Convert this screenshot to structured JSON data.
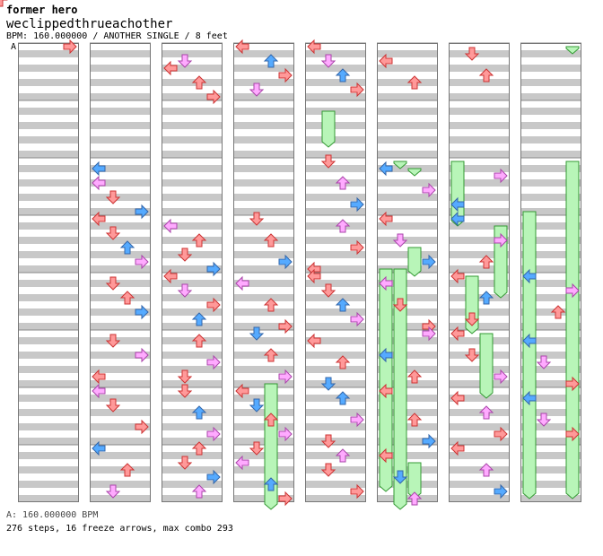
{
  "header": {
    "artist": "former hero",
    "title": "weclippedthrueachother",
    "meta": "BPM: 160.000000 / ANOTHER SINGLE / 8 feet",
    "bpm_change_marker": "A"
  },
  "footer": {
    "bpm_line": "A: 160.000000 BPM",
    "stats": "276 steps, 16 freeze arrows, max combo 293"
  },
  "colors": {
    "left": "#55aaff",
    "down": "#ff9999",
    "up": "#ff9999",
    "right": "#ff9999",
    "quarter": "#ff9999",
    "eighth": "#55aaff",
    "sixteenth": "#ffaaff",
    "freeze": "#b8f5b8",
    "stripe": "#c8c8c8"
  },
  "chart_data": {
    "type": "step-chart",
    "lanes": [
      "left",
      "down",
      "up",
      "right"
    ],
    "measures_per_column": 8,
    "columns": 8,
    "rows_per_measure": 8,
    "notes": [
      [
        0,
        0,
        0,
        4,
        0
      ],
      [
        0,
        0,
        0,
        5,
        1
      ],
      [
        0,
        0,
        0,
        6,
        2
      ],
      [
        0,
        0,
        0,
        7,
        3
      ],
      [
        0,
        0,
        0,
        3,
        0
      ],
      [
        1,
        2,
        1,
        0,
        1
      ],
      [
        1,
        2,
        3,
        0,
        2
      ],
      [
        1,
        2,
        5,
        1,
        0
      ],
      [
        1,
        2,
        7,
        3,
        1
      ],
      [
        2,
        0,
        3,
        0,
        3
      ],
      [
        2,
        0,
        2,
        1,
        2
      ],
      [
        2,
        0,
        5,
        2,
        0
      ],
      [
        2,
        0,
        7,
        3,
        3
      ],
      [
        3,
        0,
        0,
        0,
        3
      ],
      [
        3,
        0,
        2,
        2,
        1
      ],
      [
        3,
        0,
        4,
        3,
        0
      ],
      [
        3,
        0,
        6,
        1,
        2
      ],
      [
        4,
        0,
        0,
        0,
        0
      ],
      [
        4,
        0,
        2,
        1,
        2
      ],
      [
        4,
        0,
        4,
        2,
        1
      ],
      [
        4,
        0,
        6,
        3,
        3
      ],
      [
        4,
        2,
        0,
        1,
        0
      ],
      [
        4,
        2,
        3,
        2,
        2
      ],
      [
        4,
        2,
        6,
        3,
        1
      ],
      [
        5,
        0,
        2,
        0,
        0
      ],
      [
        5,
        0,
        5,
        2,
        3
      ],
      [
        5,
        2,
        1,
        0,
        1
      ],
      [
        5,
        2,
        4,
        3,
        2
      ],
      [
        6,
        0,
        1,
        1,
        0
      ],
      [
        6,
        0,
        4,
        2,
        3
      ],
      [
        6,
        2,
        2,
        3,
        2
      ],
      [
        6,
        2,
        6,
        0,
        1
      ],
      [
        0,
        3,
        0,
        4,
        0
      ],
      [
        0,
        3,
        2,
        5,
        1
      ],
      [
        0,
        3,
        4,
        6,
        2
      ],
      [
        0,
        3,
        6,
        7,
        3
      ],
      [
        1,
        3,
        0,
        0,
        0
      ],
      [
        1,
        3,
        2,
        1,
        3
      ],
      [
        1,
        3,
        4,
        2,
        1
      ],
      [
        1,
        3,
        6,
        3,
        2
      ],
      [
        2,
        3,
        1,
        0,
        2
      ],
      [
        2,
        3,
        3,
        2,
        3
      ],
      [
        2,
        3,
        5,
        1,
        0
      ],
      [
        2,
        3,
        7,
        3,
        1
      ],
      [
        3,
        3,
        0,
        1,
        0
      ],
      [
        3,
        3,
        3,
        2,
        3
      ],
      [
        3,
        3,
        6,
        3,
        1
      ],
      [
        4,
        3,
        1,
        2,
        2
      ],
      [
        4,
        3,
        4,
        3,
        0
      ],
      [
        4,
        3,
        7,
        0,
        3
      ],
      [
        5,
        3,
        0,
        0,
        0
      ],
      [
        5,
        3,
        3,
        1,
        2
      ],
      [
        5,
        3,
        6,
        3,
        1
      ],
      [
        6,
        3,
        0,
        0,
        1
      ],
      [
        6,
        3,
        3,
        3,
        2
      ],
      [
        6,
        3,
        6,
        2,
        3
      ],
      [
        0,
        4,
        0,
        4,
        1
      ],
      [
        0,
        4,
        2,
        5,
        2
      ],
      [
        0,
        4,
        4,
        6,
        0
      ],
      [
        0,
        4,
        6,
        7,
        3
      ],
      [
        1,
        4,
        1,
        1,
        0
      ],
      [
        1,
        4,
        3,
        2,
        3
      ],
      [
        1,
        4,
        5,
        3,
        1
      ],
      [
        2,
        4,
        0,
        0,
        0
      ],
      [
        2,
        4,
        2,
        1,
        2
      ],
      [
        2,
        4,
        4,
        3,
        3
      ],
      [
        2,
        4,
        6,
        2,
        1
      ],
      [
        3,
        4,
        1,
        0,
        2
      ],
      [
        3,
        4,
        4,
        2,
        0
      ],
      [
        3,
        4,
        7,
        3,
        3
      ],
      [
        4,
        4,
        0,
        0,
        0
      ],
      [
        4,
        4,
        2,
        1,
        3
      ],
      [
        4,
        4,
        4,
        2,
        1
      ],
      [
        4,
        4,
        6,
        3,
        2
      ],
      [
        5,
        4,
        1,
        0,
        2
      ],
      [
        5,
        4,
        4,
        1,
        0
      ],
      [
        5,
        4,
        7,
        3,
        3
      ],
      [
        6,
        4,
        0,
        0,
        0
      ],
      [
        6,
        4,
        3,
        2,
        1
      ],
      [
        6,
        4,
        6,
        1,
        3
      ],
      [
        7,
        4,
        0,
        0,
        1
      ],
      [
        7,
        4,
        2,
        3,
        2
      ],
      [
        7,
        4,
        5,
        2,
        0
      ],
      [
        0,
        5,
        0,
        4,
        0
      ],
      [
        0,
        5,
        2,
        6,
        1
      ],
      [
        0,
        5,
        4,
        5,
        2
      ],
      [
        0,
        5,
        6,
        7,
        3
      ],
      [
        1,
        5,
        1,
        1,
        0
      ],
      [
        1,
        5,
        3,
        3,
        2
      ],
      [
        1,
        5,
        6,
        0,
        3
      ],
      [
        2,
        5,
        1,
        2,
        0
      ],
      [
        2,
        5,
        4,
        3,
        2
      ],
      [
        2,
        5,
        6,
        1,
        3
      ],
      [
        3,
        5,
        0,
        1,
        1
      ],
      [
        3,
        5,
        3,
        2,
        0
      ],
      [
        3,
        5,
        6,
        3,
        2
      ],
      [
        4,
        5,
        1,
        0,
        0
      ],
      [
        4,
        5,
        4,
        2,
        3
      ],
      [
        4,
        5,
        7,
        1,
        1
      ],
      [
        5,
        5,
        0,
        3,
        2
      ],
      [
        5,
        5,
        3,
        0,
        1
      ],
      [
        5,
        5,
        6,
        2,
        3
      ],
      [
        6,
        5,
        0,
        0,
        0
      ],
      [
        6,
        5,
        3,
        1,
        3
      ],
      [
        6,
        5,
        6,
        3,
        2
      ],
      [
        7,
        5,
        1,
        0,
        1
      ],
      [
        7,
        5,
        4,
        1,
        2
      ],
      [
        7,
        5,
        7,
        3,
        0
      ],
      [
        0,
        6,
        1,
        4,
        1
      ],
      [
        0,
        6,
        4,
        5,
        3
      ],
      [
        0,
        6,
        6,
        6,
        0
      ],
      [
        1,
        6,
        0,
        0,
        2
      ],
      [
        1,
        6,
        2,
        1,
        0
      ],
      [
        1,
        6,
        5,
        3,
        3
      ],
      [
        2,
        6,
        0,
        1,
        3
      ],
      [
        2,
        6,
        3,
        2,
        1
      ],
      [
        2,
        6,
        6,
        3,
        2
      ],
      [
        3,
        6,
        0,
        0,
        0
      ],
      [
        3,
        6,
        2,
        1,
        1
      ],
      [
        3,
        6,
        4,
        2,
        0
      ],
      [
        3,
        6,
        6,
        3,
        2
      ],
      [
        4,
        6,
        1,
        2,
        1
      ],
      [
        4,
        6,
        4,
        3,
        2
      ],
      [
        4,
        6,
        7,
        1,
        3
      ],
      [
        5,
        6,
        0,
        0,
        0
      ],
      [
        5,
        6,
        4,
        2,
        3
      ],
      [
        5,
        6,
        7,
        3,
        1
      ],
      [
        6,
        6,
        1,
        0,
        0
      ],
      [
        6,
        6,
        3,
        2,
        2
      ],
      [
        6,
        6,
        6,
        3,
        3
      ],
      [
        7,
        6,
        1,
        0,
        1
      ],
      [
        7,
        6,
        4,
        1,
        2
      ],
      [
        7,
        6,
        6,
        3,
        0
      ],
      [
        0,
        7,
        1,
        4,
        2
      ],
      [
        0,
        7,
        3,
        5,
        1
      ],
      [
        0,
        7,
        5,
        6,
        3
      ],
      [
        0,
        7,
        7,
        7,
        0
      ],
      [
        1,
        7,
        0,
        0,
        1
      ],
      [
        1,
        7,
        3,
        2,
        3
      ],
      [
        1,
        7,
        6,
        1,
        2
      ],
      [
        2,
        7,
        0,
        2,
        0
      ],
      [
        2,
        7,
        2,
        1,
        3
      ],
      [
        2,
        7,
        4,
        3,
        1
      ],
      [
        2,
        7,
        6,
        2,
        2
      ],
      [
        3,
        7,
        0,
        1,
        0
      ],
      [
        3,
        7,
        2,
        0,
        2
      ],
      [
        3,
        7,
        5,
        2,
        1
      ],
      [
        3,
        7,
        7,
        3,
        3
      ],
      [
        4,
        7,
        1,
        2,
        2
      ],
      [
        4,
        7,
        3,
        1,
        0
      ],
      [
        4,
        7,
        6,
        3,
        3
      ],
      [
        5,
        7,
        1,
        0,
        0
      ],
      [
        5,
        7,
        4,
        1,
        1
      ],
      [
        5,
        7,
        7,
        2,
        2
      ],
      [
        6,
        7,
        0,
        0,
        0
      ],
      [
        6,
        7,
        3,
        2,
        2
      ],
      [
        6,
        7,
        6,
        3,
        1
      ]
    ],
    "freezes": [
      [
        4,
        1,
        1,
        1,
        1,
        6
      ],
      [
        3,
        5,
        7,
        2,
        5,
        1
      ],
      [
        5,
        2,
        0,
        1,
        2,
        1
      ],
      [
        5,
        2,
        1,
        2,
        2,
        2
      ],
      [
        5,
        3,
        7,
        1,
        3,
        1
      ],
      [
        5,
        3,
        4,
        2,
        4,
        0
      ],
      [
        5,
        3,
        7,
        0,
        7,
        6
      ],
      [
        6,
        2,
        0,
        0,
        3,
        1
      ],
      [
        6,
        3,
        1,
        3,
        4,
        3
      ],
      [
        6,
        4,
        0,
        1,
        5,
        0
      ],
      [
        6,
        5,
        0,
        2,
        6,
        1
      ],
      [
        7,
        0,
        0,
        3,
        0,
        1
      ],
      [
        7,
        2,
        7,
        0,
        7,
        7
      ],
      [
        7,
        2,
        0,
        3,
        7,
        7
      ],
      [
        8,
        0,
        0,
        0,
        0,
        1
      ],
      [
        5,
        7,
        2,
        2,
        7,
        7
      ]
    ]
  }
}
